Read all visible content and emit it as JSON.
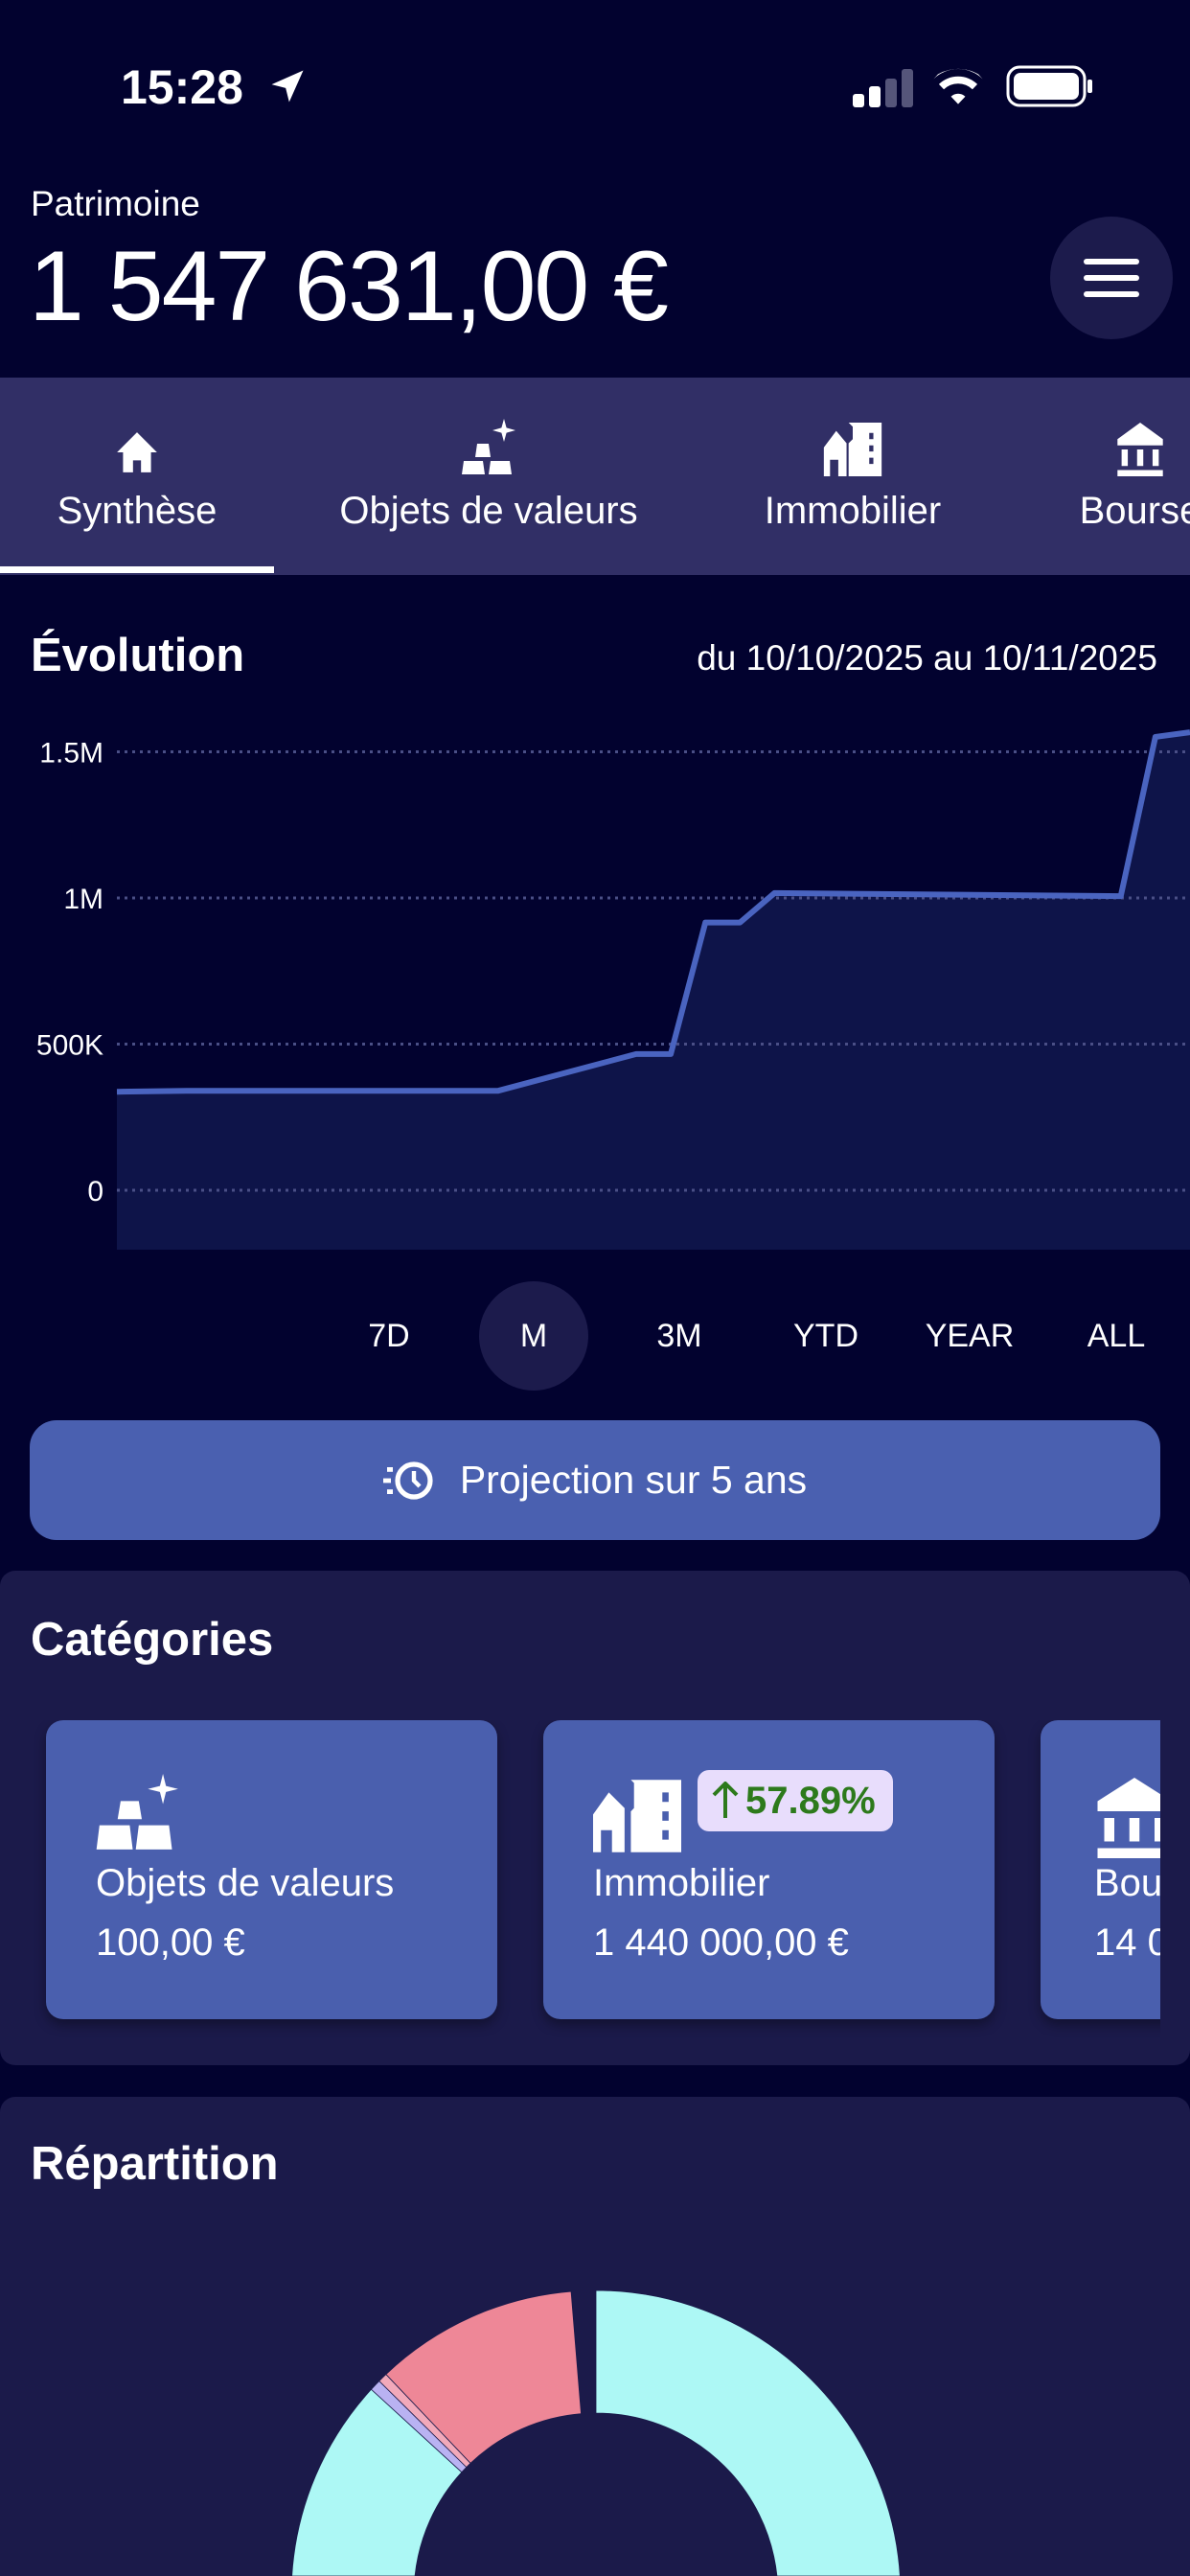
{
  "status_bar": {
    "time": "15:28"
  },
  "header": {
    "label": "Patrimoine",
    "total": "1 547 631,00 €"
  },
  "tabs": [
    {
      "label": "Synthèse",
      "icon": "home-icon",
      "active": true
    },
    {
      "label": "Objets de valeurs",
      "icon": "gold-bars-icon",
      "active": false
    },
    {
      "label": "Immobilier",
      "icon": "buildings-icon",
      "active": false
    },
    {
      "label": "Bourse",
      "icon": "bank-icon",
      "active": false
    }
  ],
  "evolution": {
    "title": "Évolution",
    "range": "du 10/10/2025 au 10/11/2025",
    "periods": [
      "7D",
      "M",
      "3M",
      "YTD",
      "YEAR",
      "ALL"
    ],
    "active_period": "M",
    "projection_label": "Projection sur 5 ans"
  },
  "chart_data": [
    {
      "type": "area",
      "y_ticks": [
        "0",
        "500K",
        "1M",
        "1.5M"
      ],
      "y_tick_values": [
        0,
        500000,
        1000000,
        1500000
      ],
      "ylim": [
        -200000,
        1580000
      ],
      "grid": true,
      "line_color": "#4a64c0",
      "fill_color": "#0e1449",
      "x": [
        "2025-10-10",
        "2025-10-12",
        "2025-10-21",
        "2025-10-25",
        "2025-10-26",
        "2025-10-27",
        "2025-10-28",
        "2025-10-29",
        "2025-11-08",
        "2025-11-09",
        "2025-11-10"
      ],
      "values": [
        337000,
        340000,
        340000,
        466000,
        466000,
        916000,
        916000,
        1017000,
        1006000,
        1551000,
        1567000
      ]
    },
    {
      "type": "pie",
      "donut": true,
      "slices": [
        {
          "percent": 86.8,
          "color": "#adf8f5"
        },
        {
          "percent": 0.6,
          "color": "#b9b2f2"
        },
        {
          "percent": 0.5,
          "color": "#f2a9ba"
        },
        {
          "percent": 10.8,
          "color": "#ee8797"
        }
      ]
    }
  ],
  "categories": {
    "title": "Catégories",
    "items": [
      {
        "label": "Objets de valeurs",
        "value": "100,00 €",
        "icon": "gold-bars-icon"
      },
      {
        "label": "Immobilier",
        "value": "1 440 000,00 €",
        "icon": "buildings-icon",
        "badge": "57.89%",
        "trend": "up"
      },
      {
        "label": "Bourse",
        "value": "14 0",
        "icon": "bank-icon"
      }
    ]
  },
  "repartition": {
    "title": "Répartition"
  },
  "colors": {
    "background": "#02022f",
    "tabbar": "#312f66",
    "panel": "#1b1a4a",
    "accent": "#4a60b0",
    "positive": "#2d7a1c"
  }
}
